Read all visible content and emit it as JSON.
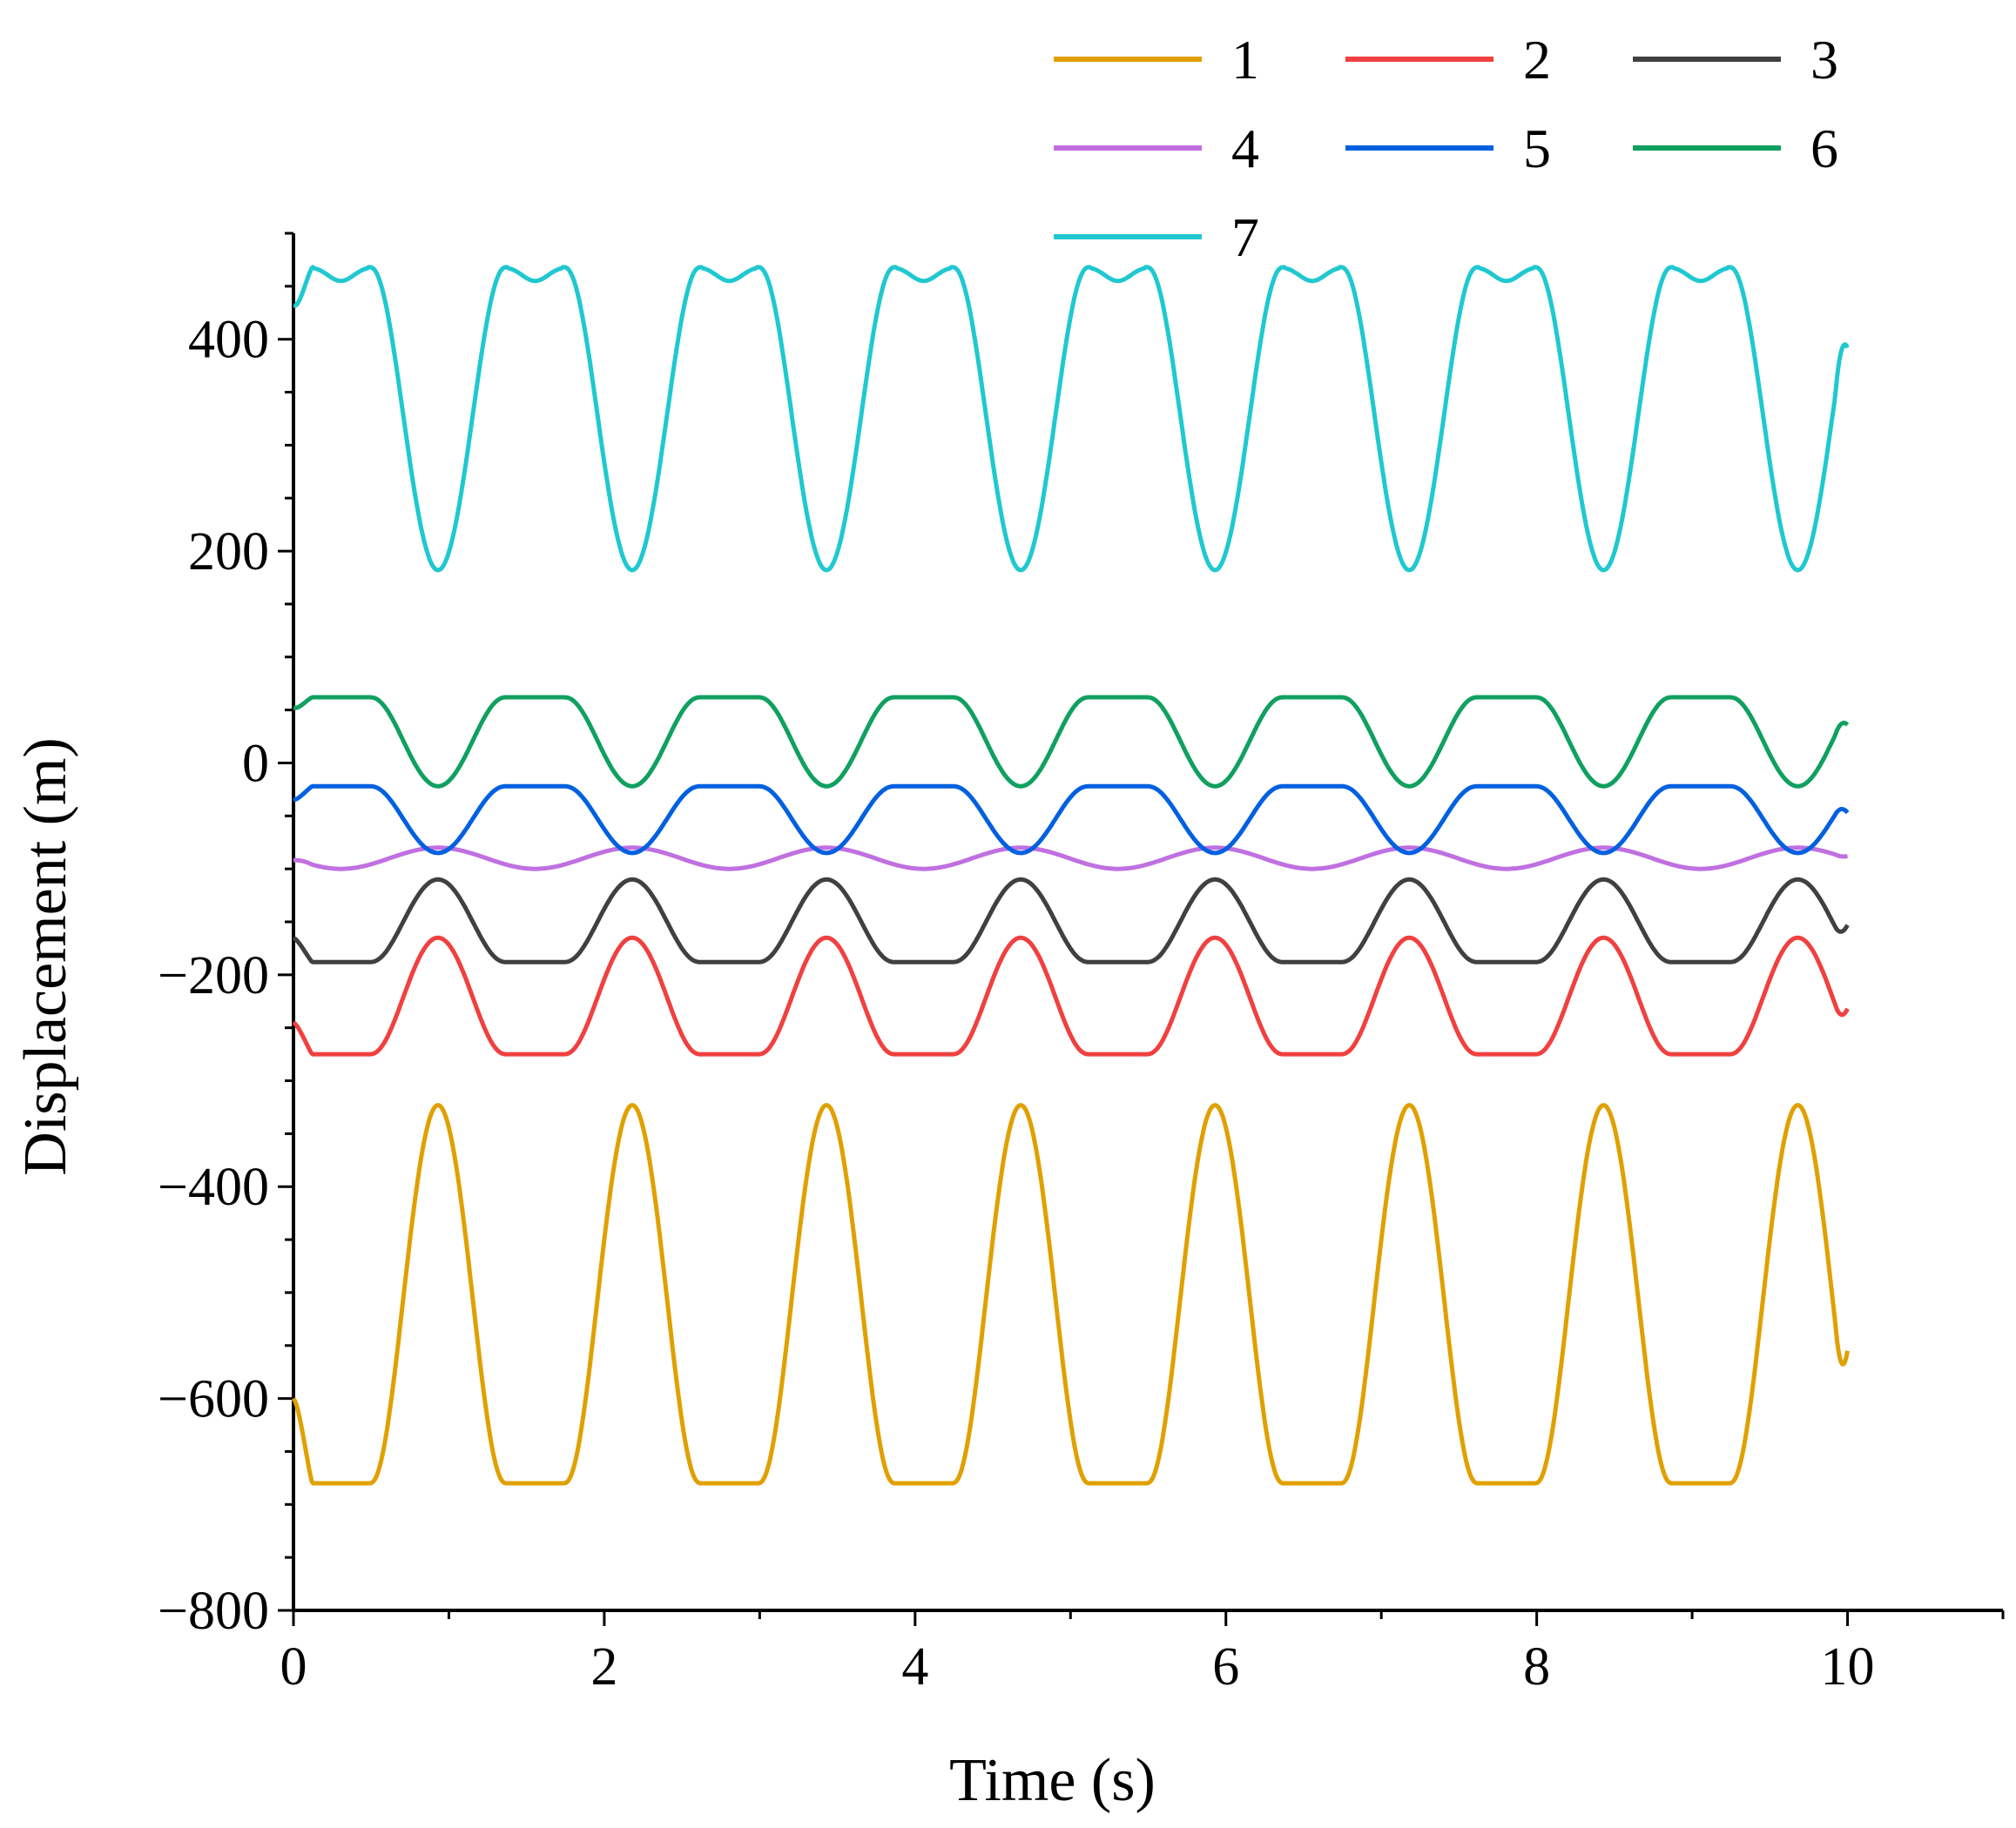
{
  "chart_data": {
    "type": "line",
    "title": "",
    "xlabel": "Time (s)",
    "ylabel": "Displacement (m)",
    "xlim": [
      0,
      11
    ],
    "ylim": [
      -800,
      500
    ],
    "x_ticks": [
      0,
      2,
      4,
      6,
      8,
      10
    ],
    "x_tick_labels": [
      "0",
      "2",
      "4",
      "6",
      "8",
      "10"
    ],
    "y_ticks": [
      -800,
      -600,
      -400,
      -200,
      0,
      200,
      400
    ],
    "y_tick_labels": [
      "−800",
      "−600",
      "−400",
      "−200",
      "0",
      "200",
      "400"
    ],
    "legend_position": "top-right, outside plot",
    "period_s": 1.25,
    "x_range": [
      0,
      10
    ],
    "series": [
      {
        "name": "1",
        "color": "#E0A000",
        "shape": "peak",
        "low": -680,
        "high": -323,
        "peak_time": 0.93,
        "start": -600,
        "end": -555
      },
      {
        "name": "2",
        "color": "#F04040",
        "shape": "peak",
        "low": -275,
        "high": -165,
        "peak_time": 0.93,
        "start": -245,
        "end": -232
      },
      {
        "name": "3",
        "color": "#404040",
        "shape": "peak",
        "low": -188,
        "high": -110,
        "peak_time": 0.93,
        "start": -165,
        "end": -153
      },
      {
        "name": "4",
        "color": "#C070E0",
        "shape": "sine",
        "low": -100,
        "high": -80,
        "peak_time": 0.93,
        "start": -92,
        "end": -88
      },
      {
        "name": "5",
        "color": "#0060E0",
        "shape": "dip",
        "low": -85,
        "high": -22,
        "dip_time": 0.93,
        "start": -35,
        "end": -47
      },
      {
        "name": "6",
        "color": "#10A060",
        "shape": "dip",
        "low": -22,
        "high": 62,
        "dip_time": 0.93,
        "start": 52,
        "end": 36
      },
      {
        "name": "7",
        "color": "#20C8D0",
        "shape": "dip_double_peak",
        "low": 182,
        "high": 468,
        "shoulder": 455,
        "dip_time": 0.93,
        "start": 432,
        "end": 392
      }
    ]
  }
}
